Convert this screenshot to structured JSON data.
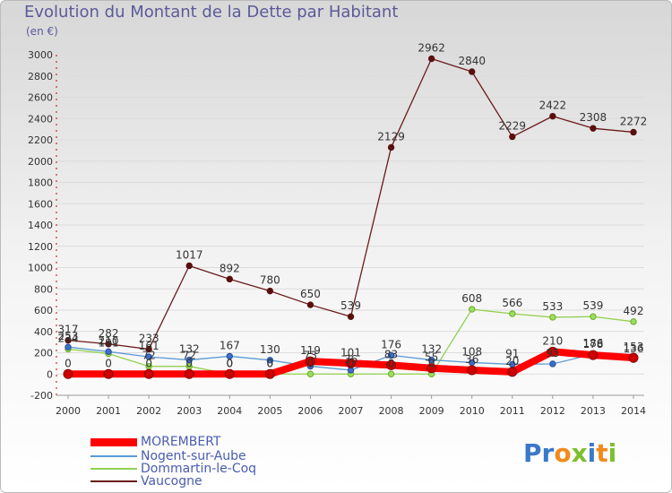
{
  "title": "Evolution du Montant de la Dette par Habitant",
  "unit": "(en €)",
  "brand": "Proxiti",
  "colors": {
    "MOREMBERT": "#ff0000",
    "Nogent-sur-Aube": "#5b9bd5",
    "Dommartin-le-Coq": "#92d050",
    "Vaucogne": "#6b1a1a",
    "label_text": "#333333"
  },
  "chart_data": {
    "type": "line",
    "title": "Evolution du Montant de la Dette par Habitant",
    "ylabel": "(en €)",
    "xlabel": "",
    "ylim": [
      -200,
      3000
    ],
    "yticks": [
      -200,
      0,
      200,
      400,
      600,
      800,
      1000,
      1200,
      1400,
      1600,
      1800,
      2000,
      2200,
      2400,
      2600,
      2800,
      3000
    ],
    "grid": "horizontal",
    "legend": "bottom-left",
    "categories": [
      "2000",
      "2001",
      "2002",
      "2003",
      "2004",
      "2005",
      "2006",
      "2007",
      "2008",
      "2009",
      "2010",
      "2011",
      "2012",
      "2013",
      "2014"
    ],
    "series": [
      {
        "name": "Vaucogne",
        "values": [
          317,
          282,
          233,
          1017,
          892,
          780,
          650,
          539,
          2129,
          2962,
          2840,
          2229,
          2422,
          2308,
          2272
        ],
        "labels": [
          "317",
          "282",
          "233",
          "1017",
          "892",
          "780",
          "650",
          "539",
          "2129",
          "2962",
          "2840",
          "2229",
          "2422",
          "2308",
          "2272"
        ]
      },
      {
        "name": "Dommartin-le-Coq",
        "values": [
          234,
          191,
          72,
          72,
          0,
          0,
          0,
          0,
          0,
          0,
          608,
          566,
          533,
          539,
          492
        ],
        "labels": [
          "234",
          "191",
          "72",
          "72",
          "0",
          "0",
          "0",
          "0",
          "0",
          "0",
          "608",
          "566",
          "533",
          "539",
          "492"
        ]
      },
      {
        "name": "Nogent-sur-Aube",
        "values": [
          253,
          210,
          161,
          132,
          167,
          130,
          73,
          36,
          176,
          132,
          108,
          91,
          95,
          186,
          136
        ],
        "labels": [
          "253",
          "210",
          "161",
          "132",
          "167",
          "130",
          "73",
          "36",
          "176",
          "132",
          "108",
          "91",
          "95",
          "186",
          "136"
        ]
      },
      {
        "name": "MOREMBERT",
        "values": [
          0,
          0,
          0,
          0,
          0,
          0,
          119,
          101,
          83,
          55,
          36,
          20,
          210,
          178,
          153
        ],
        "labels": [
          "0",
          "0",
          "0",
          "0",
          "0",
          "0",
          "119",
          "101",
          "83",
          "55",
          "36",
          "20",
          "210",
          "178",
          "153"
        ]
      }
    ]
  },
  "legend": [
    {
      "name": "MOREMBERT"
    },
    {
      "name": "Nogent-sur-Aube"
    },
    {
      "name": "Dommartin-le-Coq"
    },
    {
      "name": "Vaucogne"
    }
  ]
}
